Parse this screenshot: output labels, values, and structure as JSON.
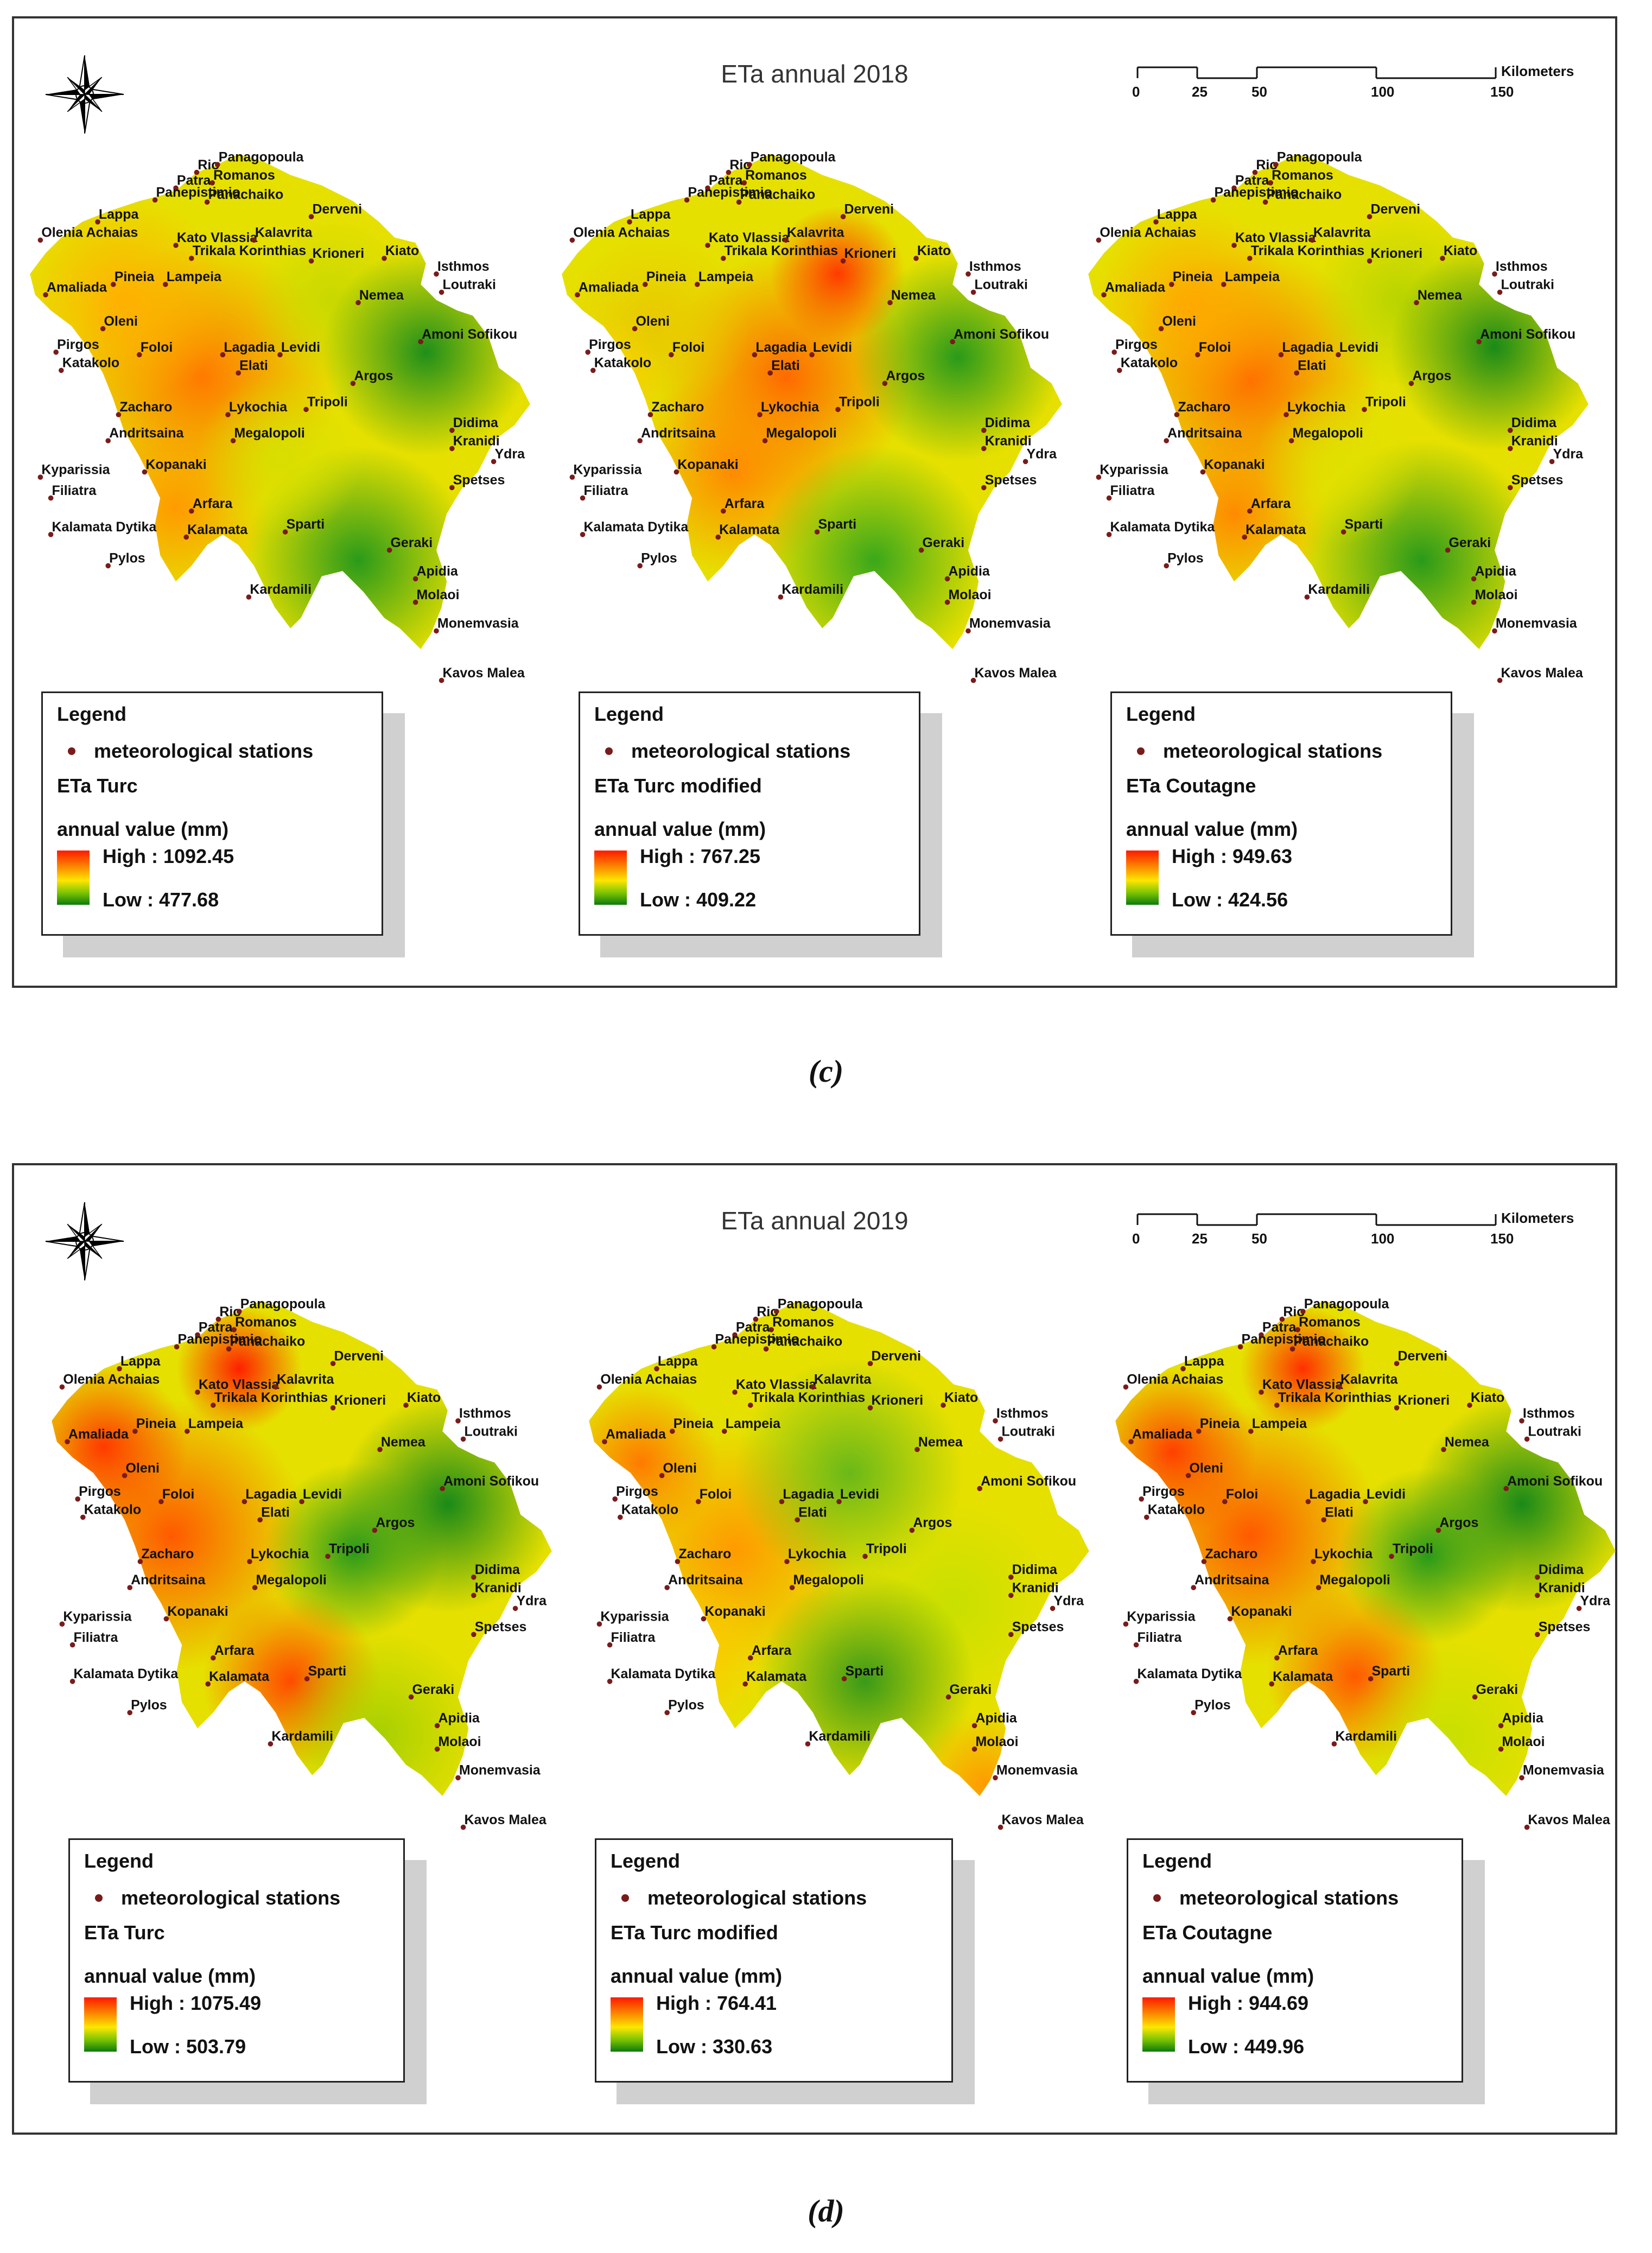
{
  "figures": [
    {
      "caption": "(c)",
      "title": "ETa annual 2018",
      "legends": [
        {
          "title": "Legend",
          "station_label": "meteorological stations",
          "method": "ETa Turc",
          "unit": "annual value (mm)",
          "high": "High : 1092.45",
          "low": "Low : 477.68"
        },
        {
          "title": "Legend",
          "station_label": "meteorological stations",
          "method": "ETa Turc modified",
          "unit": "annual value (mm)",
          "high": "High : 767.25",
          "low": "Low : 409.22"
        },
        {
          "title": "Legend",
          "station_label": "meteorological stations",
          "method": "ETa Coutagne",
          "unit": "annual value (mm)",
          "high": "High : 949.63",
          "low": "Low : 424.56"
        }
      ]
    },
    {
      "caption": "(d)",
      "title": "ETa annual 2019",
      "legends": [
        {
          "title": "Legend",
          "station_label": "meteorological stations",
          "method": "ETa Turc",
          "unit": "annual value (mm)",
          "high": "High : 1075.49",
          "low": "Low : 503.79"
        },
        {
          "title": "Legend",
          "station_label": "meteorological stations",
          "method": "ETa Turc modified",
          "unit": "annual value (mm)",
          "high": "High : 764.41",
          "low": "Low : 330.63"
        },
        {
          "title": "Legend",
          "station_label": "meteorological stations",
          "method": "ETa Coutagne",
          "unit": "annual value (mm)",
          "high": "High : 944.69",
          "low": "Low : 449.96"
        }
      ]
    }
  ],
  "scale": {
    "ticks": [
      "0",
      "25",
      "50",
      "100",
      "150"
    ],
    "unit": "Kilometers"
  },
  "north_arrow_icon": "compass-rose-icon",
  "colors": {
    "high": "#ff1a00",
    "mid_high": "#ff9a00",
    "mid": "#ffe600",
    "mid_low": "#7cc400",
    "low": "#0b7a10",
    "station": "#7a1b1b"
  },
  "stations": [
    "Rio",
    "Panagopoula",
    "Patra",
    "Romanos",
    "Panepistimio",
    "Panachaiko",
    "Derveni",
    "Lappa",
    "Olenia Achaias",
    "Kato Vlassia",
    "Kalavrita",
    "Kiato",
    "Isthmos",
    "Trikala Korinthias",
    "Krionerі",
    "Loutraki",
    "Amaliada",
    "Pineia",
    "Lampeia",
    "Nemea",
    "Oleni",
    "Amoni Sofikou",
    "Pirgos",
    "Foloi",
    "Lagadia",
    "Levidi",
    "Katakolo",
    "Elati",
    "Argos",
    "Zacharo",
    "Lykochia",
    "Tripoli",
    "Didima",
    "Andritsaina",
    "Megalopoli",
    "Kranidi",
    "Ydra",
    "Kyparissia",
    "Kopanaki",
    "Spetses",
    "Filiatra",
    "Arfara",
    "Kalamata Dytika",
    "Kalamata",
    "Sparti",
    "Geraki",
    "Pylos",
    "Kardamili",
    "Apidia",
    "Molaoi",
    "Monemvasia",
    "Kavos Malea"
  ]
}
